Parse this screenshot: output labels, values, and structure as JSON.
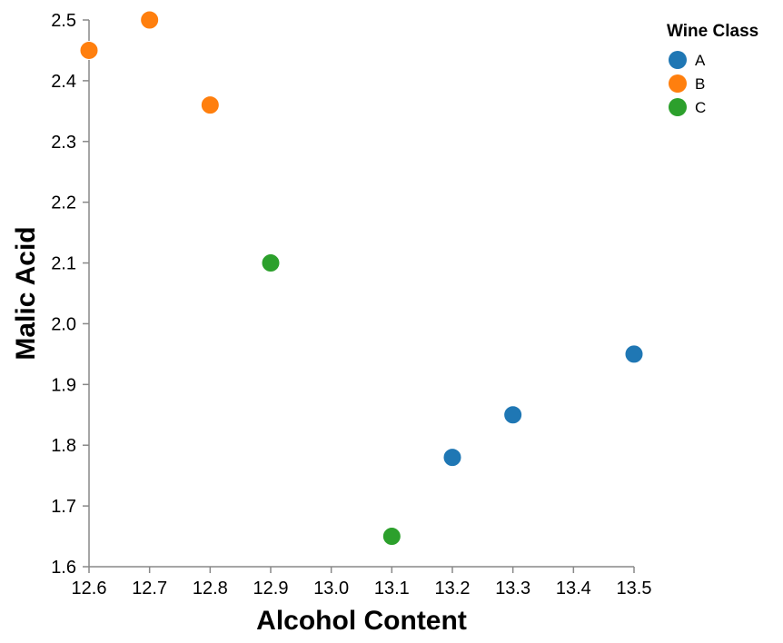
{
  "chart_data": {
    "type": "scatter",
    "xlabel": "Alcohol Content",
    "ylabel": "Malic Acid",
    "xlim": [
      12.6,
      13.5
    ],
    "ylim": [
      1.6,
      2.5
    ],
    "x_ticks": [
      "12.6",
      "12.7",
      "12.8",
      "12.9",
      "13.0",
      "13.1",
      "13.2",
      "13.3",
      "13.4",
      "13.5"
    ],
    "y_ticks": [
      "1.6",
      "1.7",
      "1.8",
      "1.9",
      "2.0",
      "2.1",
      "2.2",
      "2.3",
      "2.4",
      "2.5"
    ],
    "grid": false,
    "legend": {
      "title": "Wine Class",
      "placement": "top-right",
      "entries": [
        "A",
        "B",
        "C"
      ]
    },
    "series": [
      {
        "name": "A",
        "color": "#1f77b4",
        "points": [
          [
            13.2,
            1.78
          ],
          [
            13.3,
            1.85
          ],
          [
            13.5,
            1.95
          ]
        ]
      },
      {
        "name": "B",
        "color": "#ff7f0e",
        "points": [
          [
            12.6,
            2.45
          ],
          [
            12.7,
            2.5
          ],
          [
            12.8,
            2.36
          ]
        ]
      },
      {
        "name": "C",
        "color": "#2ca02c",
        "points": [
          [
            12.9,
            2.1
          ],
          [
            13.1,
            1.65
          ]
        ]
      }
    ]
  }
}
